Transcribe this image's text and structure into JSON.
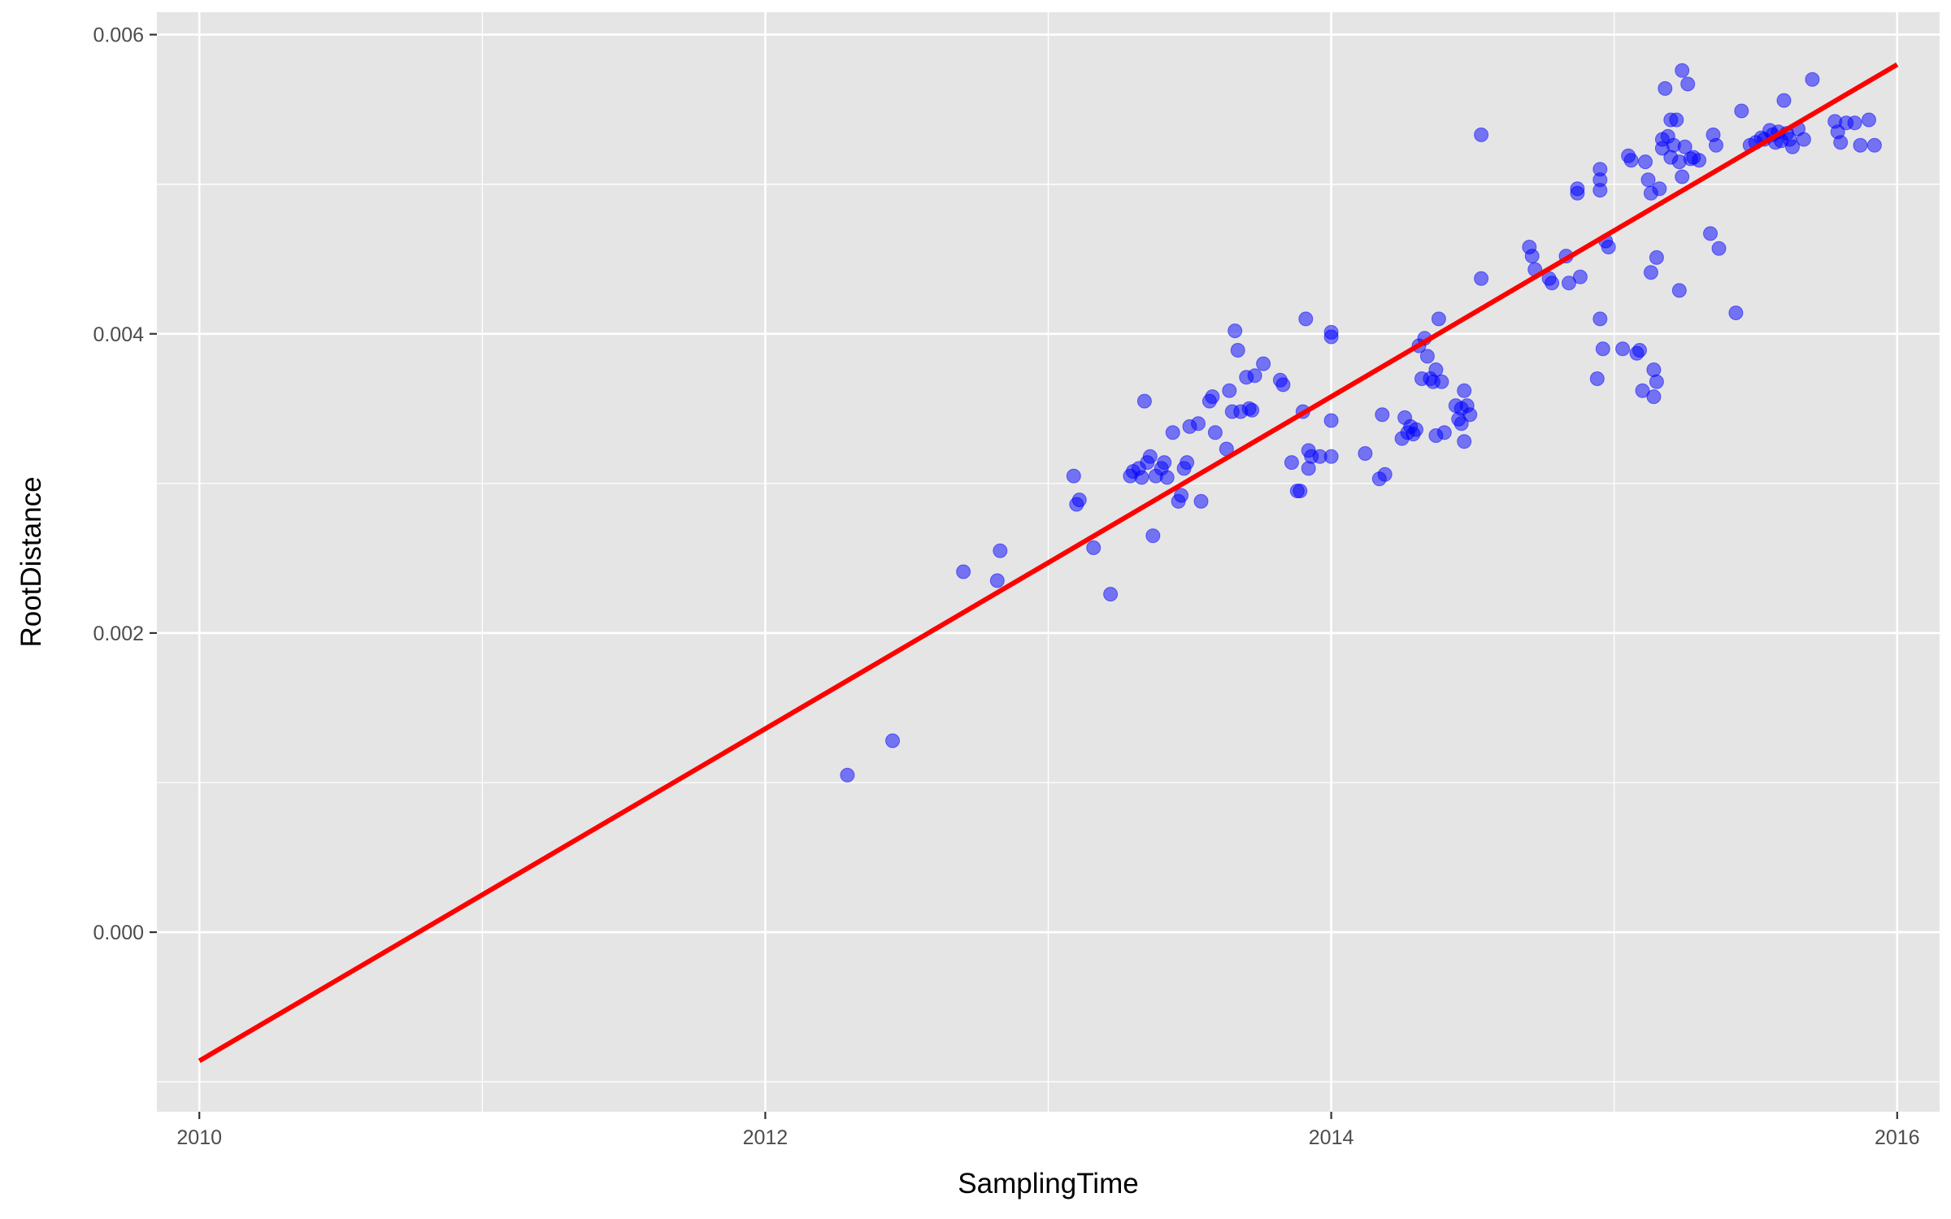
{
  "chart_data": {
    "type": "scatter",
    "xlabel": "SamplingTime",
    "ylabel": "RootDistance",
    "xlim": [
      2009.85,
      2016.15
    ],
    "ylim": [
      -0.0012,
      0.00615
    ],
    "x_ticks": [
      2010,
      2012,
      2014,
      2016
    ],
    "x_tick_labels": [
      "2010",
      "2012",
      "2014",
      "2016"
    ],
    "y_ticks": [
      0,
      0.002,
      0.004,
      0.006
    ],
    "y_tick_labels": [
      "0.000",
      "0.002",
      "0.004",
      "0.006"
    ],
    "grid": true,
    "panel_background": "#e5e5e5",
    "point_color": "#0000ff",
    "point_alpha": 0.5,
    "trend_line": {
      "color": "#ff0000",
      "x": [
        2010.0,
        2016.0
      ],
      "y": [
        -0.00086,
        0.0058
      ]
    },
    "points": [
      [
        2012.29,
        0.00105
      ],
      [
        2012.45,
        0.00128
      ],
      [
        2012.7,
        0.00241
      ],
      [
        2012.82,
        0.00235
      ],
      [
        2012.83,
        0.00255
      ],
      [
        2013.09,
        0.00305
      ],
      [
        2013.1,
        0.00286
      ],
      [
        2013.11,
        0.00289
      ],
      [
        2013.16,
        0.00257
      ],
      [
        2013.22,
        0.00226
      ],
      [
        2013.29,
        0.00305
      ],
      [
        2013.3,
        0.00308
      ],
      [
        2013.32,
        0.0031
      ],
      [
        2013.33,
        0.00304
      ],
      [
        2013.34,
        0.00355
      ],
      [
        2013.35,
        0.00314
      ],
      [
        2013.36,
        0.00318
      ],
      [
        2013.37,
        0.00265
      ],
      [
        2013.38,
        0.00305
      ],
      [
        2013.4,
        0.0031
      ],
      [
        2013.41,
        0.00314
      ],
      [
        2013.42,
        0.00304
      ],
      [
        2013.44,
        0.00334
      ],
      [
        2013.46,
        0.00288
      ],
      [
        2013.47,
        0.00292
      ],
      [
        2013.48,
        0.0031
      ],
      [
        2013.49,
        0.00314
      ],
      [
        2013.5,
        0.00338
      ],
      [
        2013.53,
        0.0034
      ],
      [
        2013.54,
        0.00288
      ],
      [
        2013.57,
        0.00355
      ],
      [
        2013.58,
        0.00358
      ],
      [
        2013.59,
        0.00334
      ],
      [
        2013.63,
        0.00323
      ],
      [
        2013.64,
        0.00362
      ],
      [
        2013.65,
        0.00348
      ],
      [
        2013.66,
        0.00402
      ],
      [
        2013.67,
        0.00389
      ],
      [
        2013.68,
        0.00348
      ],
      [
        2013.7,
        0.00371
      ],
      [
        2013.71,
        0.0035
      ],
      [
        2013.72,
        0.00349
      ],
      [
        2013.73,
        0.00372
      ],
      [
        2013.76,
        0.0038
      ],
      [
        2013.82,
        0.00369
      ],
      [
        2013.83,
        0.00366
      ],
      [
        2013.86,
        0.00314
      ],
      [
        2013.88,
        0.00295
      ],
      [
        2013.89,
        0.00295
      ],
      [
        2013.9,
        0.00348
      ],
      [
        2013.91,
        0.0041
      ],
      [
        2013.92,
        0.0031
      ],
      [
        2013.92,
        0.00322
      ],
      [
        2013.93,
        0.00318
      ],
      [
        2013.96,
        0.00318
      ],
      [
        2014.0,
        0.00342
      ],
      [
        2014.0,
        0.00318
      ],
      [
        2014.0,
        0.00401
      ],
      [
        2014.0,
        0.00398
      ],
      [
        2014.12,
        0.0032
      ],
      [
        2014.17,
        0.00303
      ],
      [
        2014.18,
        0.00346
      ],
      [
        2014.19,
        0.00306
      ],
      [
        2014.25,
        0.0033
      ],
      [
        2014.26,
        0.00344
      ],
      [
        2014.27,
        0.00334
      ],
      [
        2014.28,
        0.00338
      ],
      [
        2014.29,
        0.00333
      ],
      [
        2014.3,
        0.00336
      ],
      [
        2014.31,
        0.00392
      ],
      [
        2014.32,
        0.0037
      ],
      [
        2014.33,
        0.00397
      ],
      [
        2014.34,
        0.00385
      ],
      [
        2014.35,
        0.0037
      ],
      [
        2014.36,
        0.00368
      ],
      [
        2014.37,
        0.00376
      ],
      [
        2014.37,
        0.00332
      ],
      [
        2014.38,
        0.0041
      ],
      [
        2014.39,
        0.00368
      ],
      [
        2014.4,
        0.00334
      ],
      [
        2014.44,
        0.00352
      ],
      [
        2014.45,
        0.00343
      ],
      [
        2014.46,
        0.0034
      ],
      [
        2014.46,
        0.0035
      ],
      [
        2014.47,
        0.00362
      ],
      [
        2014.47,
        0.00328
      ],
      [
        2014.48,
        0.00352
      ],
      [
        2014.49,
        0.00346
      ],
      [
        2014.53,
        0.00533
      ],
      [
        2014.53,
        0.00437
      ],
      [
        2014.7,
        0.00458
      ],
      [
        2014.71,
        0.00452
      ],
      [
        2014.72,
        0.00443
      ],
      [
        2014.77,
        0.00437
      ],
      [
        2014.78,
        0.00434
      ],
      [
        2014.83,
        0.00452
      ],
      [
        2014.84,
        0.00434
      ],
      [
        2014.87,
        0.00497
      ],
      [
        2014.87,
        0.00494
      ],
      [
        2014.88,
        0.00438
      ],
      [
        2014.94,
        0.0037
      ],
      [
        2014.95,
        0.0051
      ],
      [
        2014.95,
        0.00503
      ],
      [
        2014.95,
        0.00496
      ],
      [
        2014.95,
        0.0041
      ],
      [
        2014.96,
        0.0039
      ],
      [
        2014.97,
        0.00462
      ],
      [
        2014.98,
        0.00458
      ],
      [
        2015.03,
        0.0039
      ],
      [
        2015.05,
        0.00519
      ],
      [
        2015.06,
        0.00516
      ],
      [
        2015.08,
        0.00387
      ],
      [
        2015.09,
        0.00389
      ],
      [
        2015.1,
        0.00362
      ],
      [
        2015.11,
        0.00515
      ],
      [
        2015.12,
        0.00503
      ],
      [
        2015.13,
        0.00494
      ],
      [
        2015.13,
        0.00441
      ],
      [
        2015.14,
        0.00358
      ],
      [
        2015.14,
        0.00376
      ],
      [
        2015.15,
        0.00451
      ],
      [
        2015.15,
        0.00368
      ],
      [
        2015.16,
        0.00497
      ],
      [
        2015.17,
        0.00524
      ],
      [
        2015.17,
        0.0053
      ],
      [
        2015.18,
        0.00564
      ],
      [
        2015.19,
        0.00532
      ],
      [
        2015.2,
        0.00543
      ],
      [
        2015.2,
        0.00518
      ],
      [
        2015.21,
        0.00526
      ],
      [
        2015.22,
        0.00543
      ],
      [
        2015.23,
        0.00515
      ],
      [
        2015.23,
        0.00429
      ],
      [
        2015.24,
        0.00576
      ],
      [
        2015.24,
        0.00505
      ],
      [
        2015.25,
        0.00525
      ],
      [
        2015.26,
        0.00567
      ],
      [
        2015.27,
        0.00517
      ],
      [
        2015.28,
        0.00518
      ],
      [
        2015.3,
        0.00516
      ],
      [
        2015.34,
        0.00467
      ],
      [
        2015.35,
        0.00533
      ],
      [
        2015.36,
        0.00526
      ],
      [
        2015.37,
        0.00457
      ],
      [
        2015.43,
        0.00414
      ],
      [
        2015.45,
        0.00549
      ],
      [
        2015.48,
        0.00526
      ],
      [
        2015.5,
        0.00528
      ],
      [
        2015.52,
        0.00531
      ],
      [
        2015.53,
        0.0053
      ],
      [
        2015.55,
        0.00536
      ],
      [
        2015.56,
        0.00533
      ],
      [
        2015.57,
        0.00528
      ],
      [
        2015.58,
        0.00535
      ],
      [
        2015.59,
        0.00529
      ],
      [
        2015.6,
        0.00556
      ],
      [
        2015.61,
        0.00534
      ],
      [
        2015.62,
        0.0053
      ],
      [
        2015.63,
        0.00525
      ],
      [
        2015.65,
        0.00537
      ],
      [
        2015.67,
        0.0053
      ],
      [
        2015.7,
        0.0057
      ],
      [
        2015.78,
        0.00542
      ],
      [
        2015.79,
        0.00535
      ],
      [
        2015.8,
        0.00528
      ],
      [
        2015.82,
        0.00541
      ],
      [
        2015.85,
        0.00541
      ],
      [
        2015.87,
        0.00526
      ],
      [
        2015.9,
        0.00543
      ],
      [
        2015.92,
        0.00526
      ]
    ]
  }
}
